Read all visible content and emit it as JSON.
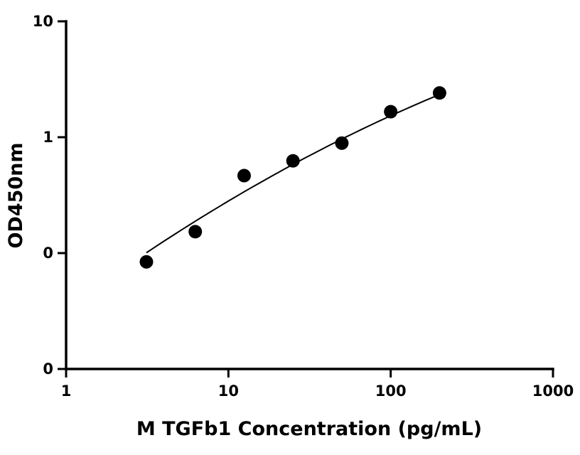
{
  "chart_data": {
    "type": "scatter",
    "title": "",
    "xlabel": "M TGFb1 Concentration (pg/mL)",
    "ylabel": "OD450nm",
    "x_scale": "log",
    "y_scale": "log",
    "xlim": [
      1,
      1000
    ],
    "ylim": [
      0.01,
      10
    ],
    "x_tick_values": [
      1,
      10,
      100,
      1000
    ],
    "x_tick_labels": [
      "1",
      "10",
      "100",
      "1000"
    ],
    "y_tick_values": [
      0.01,
      0.1,
      1,
      10
    ],
    "y_tick_labels": [
      "0",
      "0",
      "1",
      "10"
    ],
    "grid": false,
    "legend": "none",
    "marker_color": "#000000",
    "series": [
      {
        "x": [
          3.125,
          6.25,
          12.5,
          25,
          50,
          100,
          200
        ],
        "y": [
          0.084,
          0.153,
          0.466,
          0.625,
          0.889,
          1.66,
          2.41
        ]
      }
    ],
    "fit_curve": {
      "x": [
        3.125,
        6.25,
        12.5,
        25,
        50,
        100,
        200
      ],
      "y": [
        0.1,
        0.19,
        0.34,
        0.58,
        0.96,
        1.52,
        2.35
      ]
    }
  }
}
